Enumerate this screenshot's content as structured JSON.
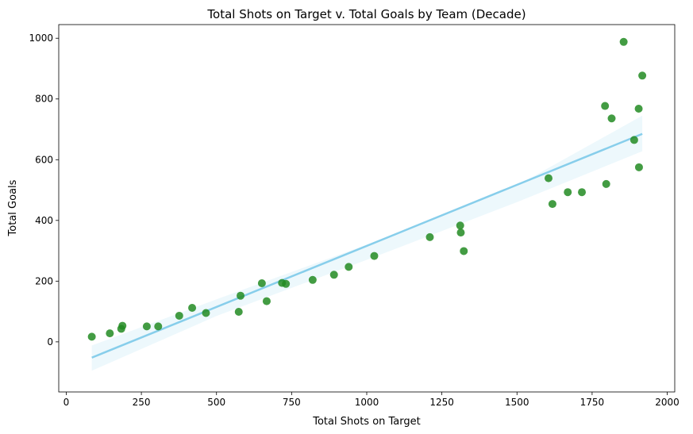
{
  "chart_data": {
    "type": "scatter",
    "title": "Total Shots on Target v. Total Goals by Team (Decade)",
    "xlabel": "Total Shots on Target",
    "ylabel": "Total Goals",
    "xlim": [
      -25,
      2025
    ],
    "ylim": [
      -165,
      1045
    ],
    "x_ticks": [
      0,
      250,
      500,
      750,
      1000,
      1250,
      1500,
      1750,
      2000
    ],
    "x_tick_labels": [
      "0",
      "250",
      "500",
      "750",
      "1000",
      "1250",
      "1500",
      "1750",
      "2000"
    ],
    "y_ticks": [
      0,
      200,
      400,
      600,
      800,
      1000
    ],
    "y_tick_labels": [
      "0",
      "200",
      "400",
      "600",
      "800",
      "1000"
    ],
    "grid": false,
    "colors": {
      "points": "#228b22",
      "regression_line": "#87ceeb",
      "confidence_band": "#87ceeb"
    },
    "points": [
      {
        "x": 85,
        "y": 17
      },
      {
        "x": 145,
        "y": 28
      },
      {
        "x": 183,
        "y": 43
      },
      {
        "x": 187,
        "y": 53
      },
      {
        "x": 268,
        "y": 51
      },
      {
        "x": 306,
        "y": 51
      },
      {
        "x": 376,
        "y": 86
      },
      {
        "x": 419,
        "y": 112
      },
      {
        "x": 465,
        "y": 95
      },
      {
        "x": 574,
        "y": 99
      },
      {
        "x": 580,
        "y": 152
      },
      {
        "x": 651,
        "y": 193
      },
      {
        "x": 667,
        "y": 134
      },
      {
        "x": 718,
        "y": 194
      },
      {
        "x": 731,
        "y": 191
      },
      {
        "x": 820,
        "y": 204
      },
      {
        "x": 891,
        "y": 221
      },
      {
        "x": 940,
        "y": 247
      },
      {
        "x": 1025,
        "y": 283
      },
      {
        "x": 1210,
        "y": 345
      },
      {
        "x": 1311,
        "y": 383
      },
      {
        "x": 1313,
        "y": 360
      },
      {
        "x": 1323,
        "y": 299
      },
      {
        "x": 1605,
        "y": 539
      },
      {
        "x": 1618,
        "y": 454
      },
      {
        "x": 1669,
        "y": 493
      },
      {
        "x": 1716,
        "y": 493
      },
      {
        "x": 1793,
        "y": 777
      },
      {
        "x": 1797,
        "y": 520
      },
      {
        "x": 1815,
        "y": 736
      },
      {
        "x": 1855,
        "y": 988
      },
      {
        "x": 1890,
        "y": 665
      },
      {
        "x": 1905,
        "y": 768
      },
      {
        "x": 1906,
        "y": 575
      },
      {
        "x": 1917,
        "y": 877
      }
    ],
    "regression": {
      "x": [
        85,
        1917
      ],
      "y": [
        -52,
        685
      ]
    },
    "confidence_band": {
      "x": [
        85,
        500,
        1000,
        1500,
        1917
      ],
      "upper": [
        -12,
        140,
        320,
        515,
        745
      ],
      "lower": [
        -95,
        85,
        270,
        460,
        628
      ]
    }
  }
}
